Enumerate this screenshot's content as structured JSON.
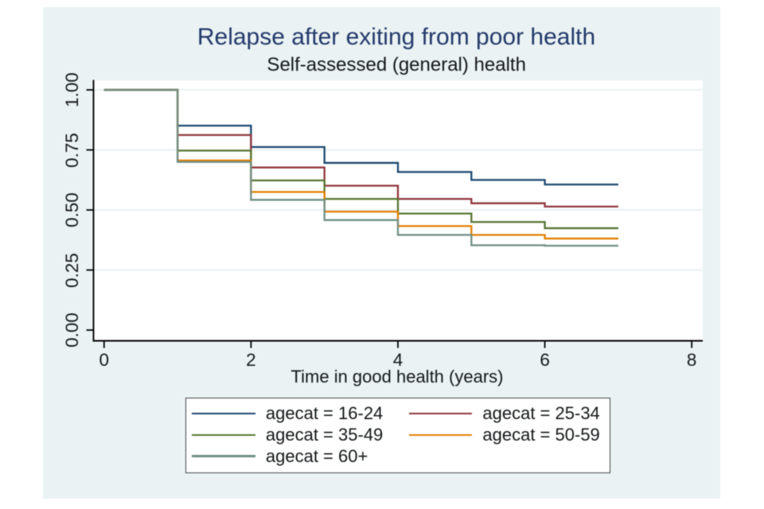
{
  "graph": {
    "title": "Relapse after exiting from poor health",
    "subtitle": "Self-assessed (general) health",
    "x_axis_title": "Time in good health (years)",
    "colors": {
      "page_background": "#ffffff",
      "graph_background": "#eaf2f3",
      "plot_background": "#ffffff",
      "gridline": "#e2edef",
      "axis": "#000000",
      "title_text": "#24396b",
      "body_text": "#101313",
      "legend_border": "#3f4344"
    }
  },
  "chart_data": {
    "type": "line",
    "line_style": "step-after (Kaplan-Meier survivor estimate)",
    "title": "Relapse after exiting from poor health",
    "subtitle": "Self-assessed (general) health",
    "xlabel": "Time in good health (years)",
    "ylabel": "",
    "xlim": [
      0,
      8
    ],
    "ylim": [
      0.0,
      1.0
    ],
    "x_ticks": [
      0,
      2,
      4,
      6,
      8
    ],
    "y_ticks": [
      0.0,
      0.25,
      0.5,
      0.75,
      1.0
    ],
    "y_tick_labels": [
      "0.00",
      "0.25",
      "0.50",
      "0.75",
      "1.00"
    ],
    "grid": "horizontal gridlines at 0.25, 0.50, 0.75, 1.00",
    "legend_position": "bottom center, 2 columns",
    "x": [
      0,
      1,
      2,
      3,
      4,
      5,
      6
    ],
    "end_x": 7,
    "series": [
      {
        "name": "agecat = 16-24",
        "color": "#1a476f",
        "values": [
          1.0,
          0.851,
          0.762,
          0.696,
          0.658,
          0.625,
          0.606
        ]
      },
      {
        "name": "agecat = 25-34",
        "color": "#90353b",
        "values": [
          1.0,
          0.812,
          0.677,
          0.601,
          0.546,
          0.528,
          0.514
        ]
      },
      {
        "name": "agecat = 35-49",
        "color": "#55752f",
        "values": [
          1.0,
          0.747,
          0.623,
          0.546,
          0.485,
          0.45,
          0.424
        ]
      },
      {
        "name": "agecat = 50-59",
        "color": "#e37e00",
        "values": [
          1.0,
          0.706,
          0.575,
          0.493,
          0.433,
          0.396,
          0.381
        ]
      },
      {
        "name": "agecat = 60+",
        "color": "#6e8e84",
        "values": [
          1.0,
          0.7,
          0.542,
          0.458,
          0.396,
          0.353,
          0.351
        ]
      }
    ]
  }
}
